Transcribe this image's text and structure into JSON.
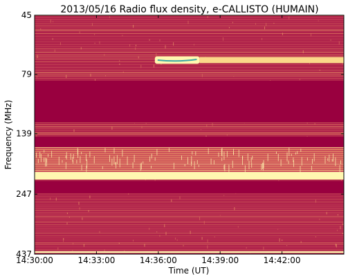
{
  "chart_data": {
    "type": "heatmap",
    "title": "2013/05/16  Radio flux density, e-CALLISTO (HUMAIN)",
    "xlabel": "Time (UT)",
    "ylabel": "Frequency (MHz)",
    "x_ticks": [
      "14:30:00",
      "14:33:00",
      "14:36:00",
      "14:39:00",
      "14:42:00"
    ],
    "y_ticks": [
      "45",
      "79",
      "139",
      "247",
      "437"
    ],
    "xlim": [
      "14:30:00",
      "14:45:00"
    ],
    "ylim_mhz": [
      45,
      437
    ],
    "y_axis_inverted": true,
    "grid": false,
    "colormap": [
      "#99003f",
      "#b0244b",
      "#c94a57",
      "#e07a5f",
      "#f2a86b",
      "#fbd889",
      "#fff7b0",
      "#7fd0b0",
      "#3aa6a6"
    ],
    "background_level": "low",
    "features": [
      {
        "kind": "saturated band",
        "freq_mhz": [
          84,
          125
        ],
        "level": "low"
      },
      {
        "kind": "saturated band",
        "freq_mhz": [
          143,
          158
        ],
        "level": "low"
      },
      {
        "kind": "bright striped band",
        "freq_mhz": [
          158,
          200
        ],
        "level": "high"
      },
      {
        "kind": "bright band",
        "freq_mhz": [
          200,
          215
        ],
        "level": "very high"
      },
      {
        "kind": "saturated band",
        "freq_mhz": [
          218,
          245
        ],
        "level": "low"
      },
      {
        "kind": "burst emission",
        "time": [
          "14:35:50",
          "14:38:00"
        ],
        "freq_mhz": [
          67,
          71
        ],
        "level": "peak"
      },
      {
        "kind": "narrowband continuum",
        "time": [
          "14:38:00",
          "14:45:00"
        ],
        "freq_mhz": [
          67,
          71
        ],
        "level": "high"
      },
      {
        "kind": "bright band",
        "freq_mhz": [
          425,
          432
        ],
        "level": "very high"
      }
    ]
  }
}
